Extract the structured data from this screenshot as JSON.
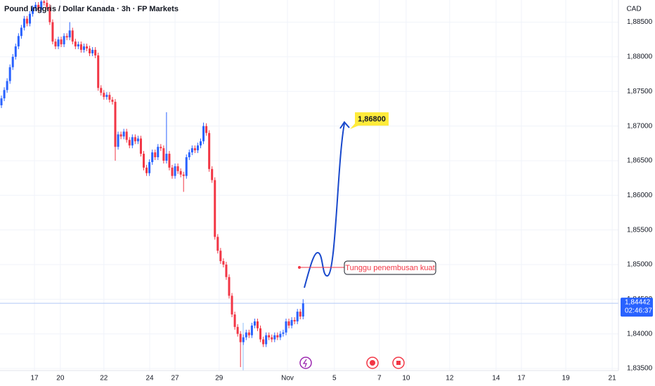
{
  "chart_data": {
    "type": "candlestick",
    "title": "Pound Inggris / Dollar Kanada · 3h · FP Markets",
    "currency": "CAD",
    "up_color": "#2962ff",
    "down_color": "#f23645",
    "open": [
      1.873,
      1.874,
      1.8752,
      1.8765,
      1.8785,
      1.88,
      1.8815,
      1.883,
      1.8842,
      1.8855,
      1.8848,
      1.8862,
      1.887,
      1.8875,
      1.8868,
      1.888,
      1.8878,
      1.8872,
      1.885,
      1.8822,
      1.8815,
      1.8825,
      1.8818,
      1.883,
      1.8828,
      1.8838,
      1.8822,
      1.8815,
      1.8818,
      1.881,
      1.8815,
      1.8812,
      1.8805,
      1.881,
      1.8802,
      1.8755,
      1.8748,
      1.8742,
      1.8745,
      1.8738,
      1.8735,
      1.867,
      1.8688,
      1.8685,
      1.8692,
      1.868,
      1.8672,
      1.8684,
      1.8678,
      1.8682,
      1.866,
      1.864,
      1.8632,
      1.8648,
      1.8662,
      1.8655,
      1.867,
      1.8668,
      1.865,
      1.866,
      1.864,
      1.8628,
      1.8642,
      1.8635,
      1.863,
      1.8628,
      1.8655,
      1.8662,
      1.8668,
      1.8665,
      1.8672,
      1.8678,
      1.87,
      1.869,
      1.8638,
      1.8622,
      1.854,
      1.852,
      1.8505,
      1.85,
      1.8482,
      1.8455,
      1.8428,
      1.841,
      1.84,
      1.8388,
      1.8395,
      1.8402,
      1.8398,
      1.8412,
      1.8418,
      1.8408,
      1.8392,
      1.8385,
      1.8398,
      1.8395,
      1.8392,
      1.8398,
      1.8395,
      1.84,
      1.8402,
      1.8418,
      1.8412,
      1.842,
      1.8418,
      1.8432,
      1.8425
    ],
    "high": [
      1.8744,
      1.8756,
      1.8769,
      1.8789,
      1.8804,
      1.8819,
      1.8834,
      1.8846,
      1.8859,
      1.8859,
      1.8866,
      1.8874,
      1.8879,
      1.8879,
      1.8884,
      1.8884,
      1.8882,
      1.8876,
      1.8854,
      1.8826,
      1.8829,
      1.8829,
      1.8834,
      1.8834,
      1.885,
      1.8842,
      1.8826,
      1.8822,
      1.8822,
      1.8819,
      1.8819,
      1.8816,
      1.8814,
      1.8814,
      1.8806,
      1.8759,
      1.8752,
      1.8749,
      1.8749,
      1.8742,
      1.8739,
      1.8692,
      1.8692,
      1.8696,
      1.8696,
      1.8684,
      1.8688,
      1.8688,
      1.8686,
      1.8686,
      1.8664,
      1.8644,
      1.8652,
      1.8666,
      1.8666,
      1.8674,
      1.8674,
      1.8672,
      1.872,
      1.8664,
      1.8644,
      1.8646,
      1.8646,
      1.8639,
      1.8634,
      1.8659,
      1.8666,
      1.8672,
      1.8672,
      1.8676,
      1.8682,
      1.8705,
      1.8704,
      1.8694,
      1.8642,
      1.8626,
      1.8544,
      1.8524,
      1.8509,
      1.8504,
      1.8486,
      1.8459,
      1.8432,
      1.8414,
      1.8404,
      1.8399,
      1.8406,
      1.8406,
      1.8416,
      1.8422,
      1.8422,
      1.8412,
      1.8396,
      1.8402,
      1.8402,
      1.8399,
      1.8402,
      1.8402,
      1.8404,
      1.8406,
      1.8422,
      1.8422,
      1.8424,
      1.8424,
      1.8436,
      1.8436,
      1.845
    ],
    "low": [
      1.8726,
      1.8736,
      1.8748,
      1.8761,
      1.8781,
      1.8796,
      1.8811,
      1.8826,
      1.8838,
      1.8844,
      1.8844,
      1.8858,
      1.8866,
      1.8864,
      1.8864,
      1.8874,
      1.8868,
      1.8846,
      1.8818,
      1.8811,
      1.8811,
      1.8814,
      1.8814,
      1.8824,
      1.8824,
      1.8818,
      1.8811,
      1.8811,
      1.8806,
      1.8806,
      1.8808,
      1.8801,
      1.8801,
      1.8798,
      1.8751,
      1.8744,
      1.8738,
      1.8738,
      1.8734,
      1.8731,
      1.865,
      1.8666,
      1.8681,
      1.8681,
      1.8676,
      1.8668,
      1.8668,
      1.8674,
      1.8674,
      1.8656,
      1.8636,
      1.8628,
      1.8628,
      1.8644,
      1.8651,
      1.8651,
      1.8664,
      1.8646,
      1.8646,
      1.8636,
      1.8624,
      1.8624,
      1.8631,
      1.8626,
      1.8605,
      1.8624,
      1.8651,
      1.8658,
      1.8661,
      1.8661,
      1.8668,
      1.8674,
      1.8686,
      1.8634,
      1.8618,
      1.8536,
      1.8516,
      1.8501,
      1.8496,
      1.8478,
      1.8451,
      1.8424,
      1.8406,
      1.8396,
      1.8352,
      1.8384,
      1.8391,
      1.8394,
      1.8394,
      1.8408,
      1.8404,
      1.8388,
      1.8381,
      1.8381,
      1.8391,
      1.8388,
      1.8388,
      1.8391,
      1.8391,
      1.8396,
      1.8398,
      1.8408,
      1.8408,
      1.8414,
      1.8414,
      1.8421,
      1.8421
    ],
    "close": [
      1.874,
      1.8752,
      1.8765,
      1.8785,
      1.88,
      1.8815,
      1.883,
      1.8842,
      1.8855,
      1.8848,
      1.8862,
      1.887,
      1.8875,
      1.8868,
      1.888,
      1.8878,
      1.8872,
      1.885,
      1.8822,
      1.8815,
      1.8825,
      1.8818,
      1.883,
      1.8828,
      1.8838,
      1.8822,
      1.8815,
      1.8818,
      1.881,
      1.8815,
      1.8812,
      1.8805,
      1.881,
      1.8802,
      1.8755,
      1.8748,
      1.8742,
      1.8745,
      1.8738,
      1.8735,
      1.867,
      1.8688,
      1.8685,
      1.8692,
      1.868,
      1.8672,
      1.8684,
      1.8678,
      1.8682,
      1.866,
      1.864,
      1.8632,
      1.8648,
      1.8662,
      1.8655,
      1.867,
      1.8668,
      1.865,
      1.866,
      1.864,
      1.8628,
      1.8642,
      1.8635,
      1.863,
      1.8628,
      1.8655,
      1.8662,
      1.8668,
      1.8665,
      1.8672,
      1.8678,
      1.87,
      1.869,
      1.8638,
      1.8622,
      1.854,
      1.852,
      1.8505,
      1.85,
      1.8482,
      1.8455,
      1.8428,
      1.841,
      1.84,
      1.8388,
      1.8395,
      1.8402,
      1.8398,
      1.8412,
      1.8418,
      1.8408,
      1.8392,
      1.8385,
      1.8398,
      1.8395,
      1.8392,
      1.8398,
      1.8395,
      1.84,
      1.8402,
      1.8418,
      1.8412,
      1.842,
      1.8418,
      1.8432,
      1.8425,
      1.8444
    ],
    "xlim": [
      -0.5,
      216.8
    ],
    "xticks": [
      {
        "value": 11.6,
        "label": "17"
      },
      {
        "value": 20.7,
        "label": "20"
      },
      {
        "value": 36,
        "label": "22"
      },
      {
        "value": 52.1,
        "label": "24"
      },
      {
        "value": 61,
        "label": "27"
      },
      {
        "value": 76.5,
        "label": "29"
      },
      {
        "value": 100.5,
        "label": "Nov"
      },
      {
        "value": 117,
        "label": "5"
      },
      {
        "value": 132.8,
        "label": "7"
      },
      {
        "value": 142.2,
        "label": "10"
      },
      {
        "value": 157.5,
        "label": "12"
      },
      {
        "value": 173.8,
        "label": "14"
      },
      {
        "value": 182.7,
        "label": "17"
      },
      {
        "value": 198.3,
        "label": "19"
      },
      {
        "value": 214.6,
        "label": "21"
      }
    ],
    "ylim": [
      1.8347,
      1.8882
    ],
    "yticks": [
      {
        "value": 1.835,
        "label": "1,83500"
      },
      {
        "value": 1.84,
        "label": "1,84000"
      },
      {
        "value": 1.845,
        "label": "1,84500"
      },
      {
        "value": 1.85,
        "label": "1,85000"
      },
      {
        "value": 1.855,
        "label": "1,85500"
      },
      {
        "value": 1.86,
        "label": "1,86000"
      },
      {
        "value": 1.865,
        "label": "1,86500"
      },
      {
        "value": 1.87,
        "label": "1,87000"
      },
      {
        "value": 1.875,
        "label": "1,87500"
      },
      {
        "value": 1.88,
        "label": "1,88000"
      },
      {
        "value": 1.885,
        "label": "1,88500"
      }
    ],
    "last_price": {
      "value": 1.84442,
      "label": "1,84442"
    },
    "countdown": "02:46:37",
    "target_label": "1,86800",
    "annotation": "Tunggu penembusan kuat"
  }
}
